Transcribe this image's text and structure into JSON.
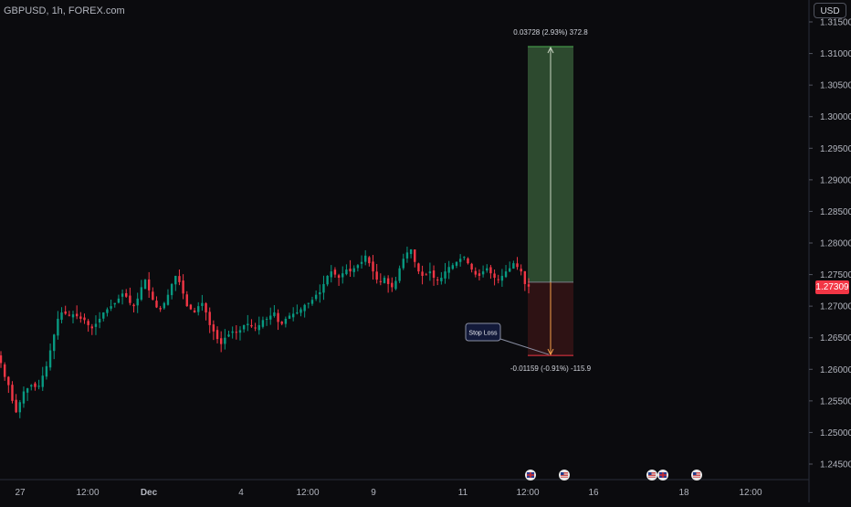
{
  "symbol": "GBPUSD, 1h, FOREX.com",
  "currency": "USD",
  "current_price": "1.27309",
  "colors": {
    "up": "#089981",
    "down": "#f23645",
    "profit_zone": "#2d4a2f",
    "loss_zone": "#2e1214",
    "background": "#0b0b0e",
    "stop_label_bg": "#131a3a"
  },
  "position_tool": {
    "target_label": "0.03728 (2.93%) 372.8",
    "stop_label": "-0.01159 (-0.91%) -115.9",
    "stop_loss_text": "Stop Loss",
    "entry_price": 1.2738,
    "target_price": 1.3111,
    "stop_price": 1.2622
  },
  "event_markers": [
    {
      "icon": "flag-uk-icon",
      "position": "12:00+"
    },
    {
      "icon": "flag-us-icon",
      "position": "13"
    },
    {
      "icon": "flag-us-icon",
      "position": "17"
    },
    {
      "icon": "flag-uk-icon",
      "position": "17+"
    },
    {
      "icon": "flag-us-icon",
      "position": "18+"
    }
  ],
  "chart_data": {
    "type": "candlestick",
    "title": "GBPUSD, 1h, FOREX.com",
    "ylim": [
      1.2425,
      1.3165
    ],
    "y_ticks": [
      "1.24500",
      "1.25000",
      "1.25500",
      "1.26000",
      "1.26500",
      "1.27000",
      "1.27500",
      "1.28000",
      "1.28500",
      "1.29000",
      "1.29500",
      "1.30000",
      "1.30500",
      "1.31000",
      "1.31500"
    ],
    "x_ticks": [
      "27",
      "12:00",
      "Dec",
      "4",
      "12:00",
      "9",
      "11",
      "12:00",
      "16",
      "18",
      "12:00"
    ],
    "close_series": [
      1.261,
      1.2588,
      1.2575,
      1.255,
      1.2532,
      1.2548,
      1.2565,
      1.257,
      1.2575,
      1.2572,
      1.2574,
      1.259,
      1.2605,
      1.263,
      1.2655,
      1.268,
      1.269,
      1.2688,
      1.2685,
      1.2687,
      1.2684,
      1.268,
      1.2678,
      1.267,
      1.2665,
      1.2672,
      1.268,
      1.269,
      1.2695,
      1.27,
      1.2705,
      1.2712,
      1.272,
      1.2715,
      1.2705,
      1.27,
      1.2712,
      1.273,
      1.2742,
      1.2725,
      1.271,
      1.2698,
      1.2695,
      1.2705,
      1.2718,
      1.2735,
      1.2748,
      1.2738,
      1.272,
      1.27,
      1.2695,
      1.269,
      1.27,
      1.2705,
      1.269,
      1.267,
      1.266,
      1.2648,
      1.264,
      1.265,
      1.2655,
      1.266,
      1.2658,
      1.2662,
      1.267,
      1.2672,
      1.2668,
      1.2665,
      1.267,
      1.2678,
      1.268,
      1.2685,
      1.269,
      1.2675,
      1.2672,
      1.268,
      1.2685,
      1.2688,
      1.269,
      1.2695,
      1.2702,
      1.2705,
      1.271,
      1.2718,
      1.2722,
      1.2735,
      1.2748,
      1.2755,
      1.275,
      1.2745,
      1.2752,
      1.2758,
      1.2755,
      1.276,
      1.2765,
      1.277,
      1.278,
      1.2768,
      1.2755,
      1.2742,
      1.2738,
      1.2745,
      1.2735,
      1.273,
      1.274,
      1.276,
      1.2775,
      1.2785,
      1.279,
      1.277,
      1.2755,
      1.2748,
      1.275,
      1.2755,
      1.2745,
      1.2742,
      1.2745,
      1.2755,
      1.2762,
      1.2765,
      1.277,
      1.2775,
      1.2778,
      1.2768,
      1.2758,
      1.275,
      1.2748,
      1.2755,
      1.276,
      1.2752,
      1.2745,
      1.2742,
      1.2748,
      1.2755,
      1.276,
      1.2768,
      1.2762,
      1.2755,
      1.2735,
      1.2731
    ]
  }
}
